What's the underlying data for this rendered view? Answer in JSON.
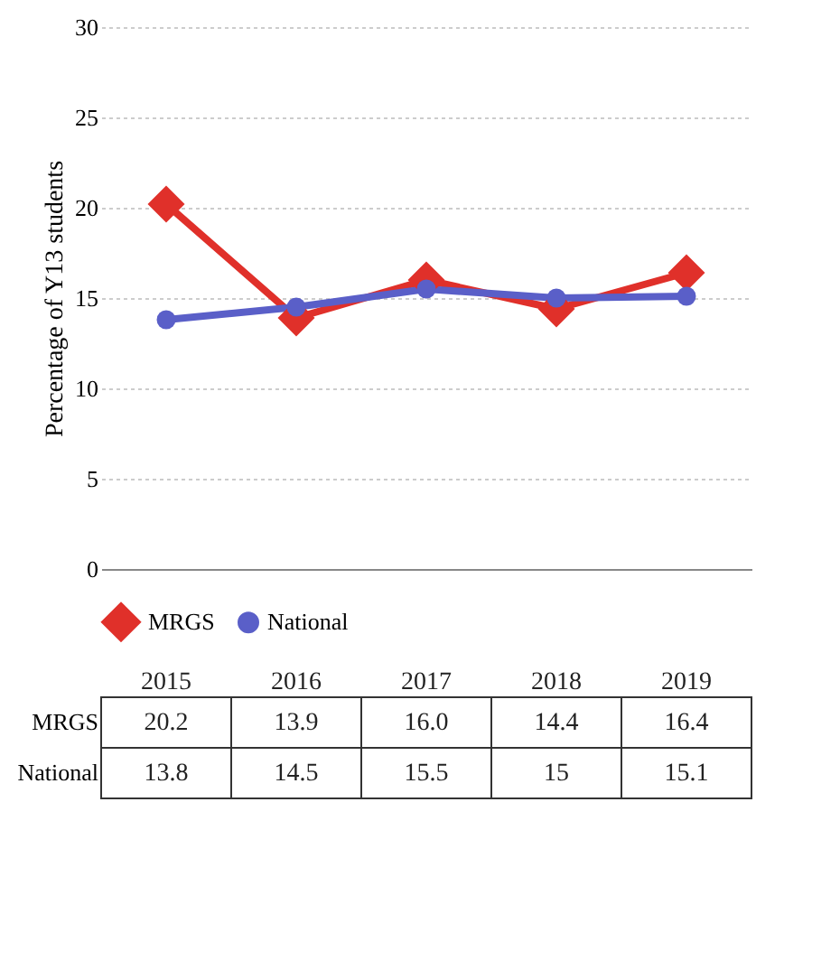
{
  "chart_data": {
    "type": "line",
    "ylabel": "Percentage of Y13 students",
    "categories": [
      "2015",
      "2016",
      "2017",
      "2018",
      "2019"
    ],
    "series": [
      {
        "name": "MRGS",
        "color": "#e0302a",
        "marker": "diamond",
        "values": [
          20.2,
          13.9,
          16.0,
          14.4,
          16.4
        ],
        "value_labels": [
          "20.2",
          "13.9",
          "16.0",
          "14.4",
          "16.4"
        ]
      },
      {
        "name": "National",
        "color": "#5a5fc8",
        "marker": "circle",
        "values": [
          13.8,
          14.5,
          15.5,
          15,
          15.1
        ],
        "value_labels": [
          "13.8",
          "14.5",
          "15.5",
          "15",
          "15.1"
        ]
      }
    ],
    "ylim": [
      0,
      30
    ],
    "yticks": [
      0,
      5,
      10,
      15,
      20,
      25,
      30
    ],
    "grid": "y",
    "legend": "bottom"
  }
}
